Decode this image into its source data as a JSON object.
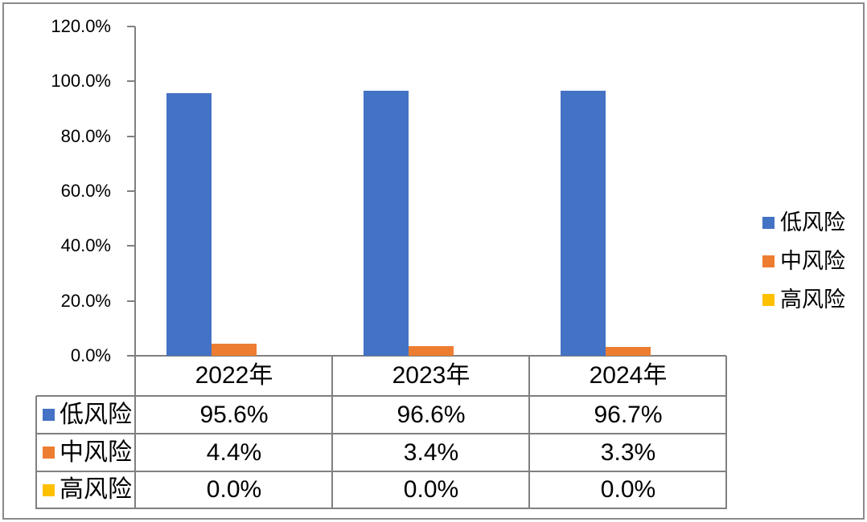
{
  "chart_data": {
    "type": "bar",
    "title": "",
    "categories": [
      "2022年",
      "2023年",
      "2024年"
    ],
    "series": [
      {
        "name": "低风险",
        "color": "#4472C4",
        "values": [
          95.6,
          96.6,
          96.7
        ],
        "display": [
          "95.6%",
          "96.6%",
          "96.7%"
        ]
      },
      {
        "name": "中风险",
        "color": "#ED7D31",
        "values": [
          4.4,
          3.4,
          3.3
        ],
        "display": [
          "4.4%",
          "3.4%",
          "3.3%"
        ]
      },
      {
        "name": "高风险",
        "color": "#FFC000",
        "values": [
          0.0,
          0.0,
          0.0
        ],
        "display": [
          "0.0%",
          "0.0%",
          "0.0%"
        ]
      }
    ],
    "ylabel": "",
    "xlabel": "",
    "ylim": [
      0,
      120
    ],
    "ytick_step": 20,
    "ytick_labels": [
      "120.0%",
      "100.0%",
      "80.0%",
      "60.0%",
      "40.0%",
      "20.0%",
      "0.0%"
    ],
    "legend_position": "right",
    "grid": false,
    "data_table_shown": true
  },
  "style": {
    "axis_color": "#808080",
    "table_line_color": "#808080",
    "outer_border_color": "#8A8A8A",
    "text_color": "#000000",
    "background": "#FFFFFF"
  }
}
